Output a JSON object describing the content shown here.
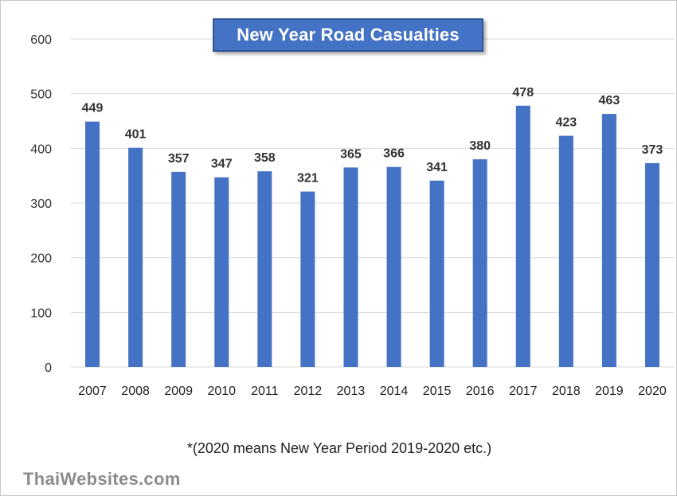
{
  "chart_data": {
    "type": "bar",
    "title": "New Year Road Casualties",
    "categories": [
      "2007",
      "2008",
      "2009",
      "2010",
      "2011",
      "2012",
      "2013",
      "2014",
      "2015",
      "2016",
      "2017",
      "2018",
      "2019",
      "2020"
    ],
    "values": [
      449,
      401,
      357,
      347,
      358,
      321,
      365,
      366,
      341,
      380,
      478,
      423,
      463,
      373
    ],
    "ylim": [
      0,
      600
    ],
    "yticks": [
      0,
      100,
      200,
      300,
      400,
      500,
      600
    ],
    "xlabel": "",
    "ylabel": "",
    "grid": true,
    "legend": "none",
    "bar_color": "#4472c4",
    "footnote": "*(2020 means New Year Period 2019-2020 etc.)"
  },
  "watermark": "ThaiWebsites.com"
}
